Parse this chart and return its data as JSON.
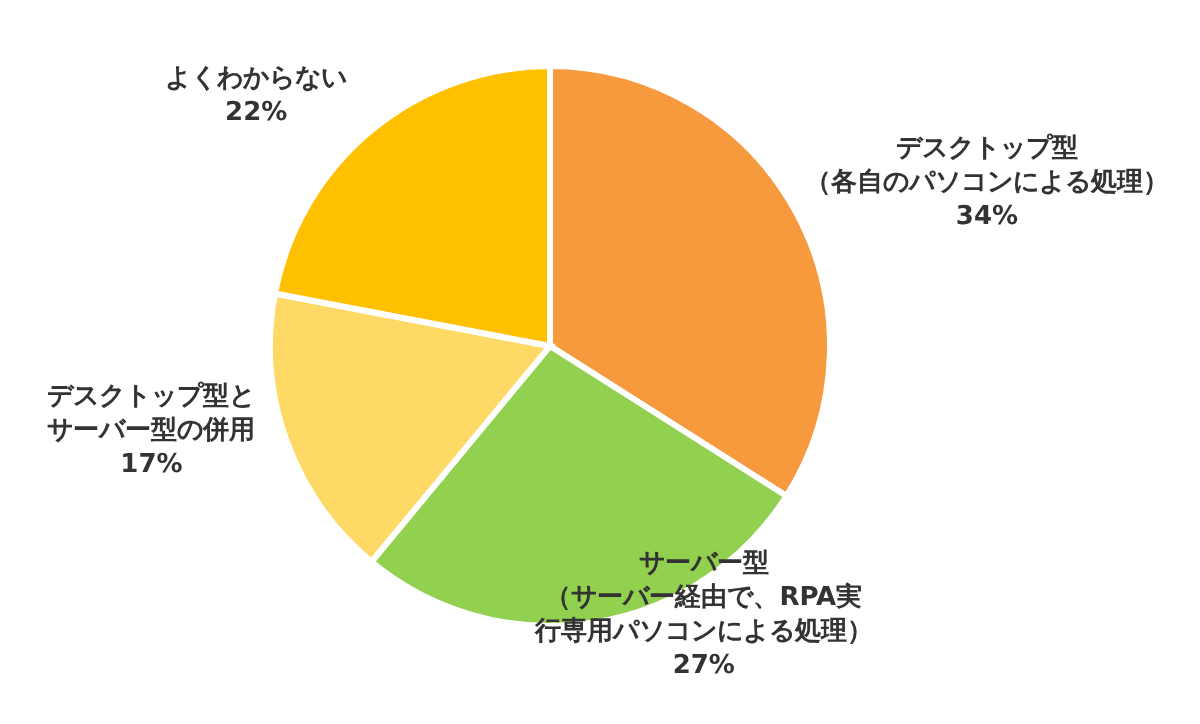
{
  "chart_data": {
    "type": "pie",
    "categories": [
      "デスクトップ型（各自のパソコンによる処理）",
      "サーバー型（サーバー経由で、RPA実行専用パソコンによる処理）",
      "デスクトップ型とサーバー型の併用",
      "よくわからない"
    ],
    "values": [
      34,
      27,
      17,
      22
    ],
    "colors": [
      "#f79a3e",
      "#92d050",
      "#ffd966",
      "#ffc000"
    ],
    "value_labels": [
      "34%",
      "27%",
      "17%",
      "22%"
    ]
  }
}
